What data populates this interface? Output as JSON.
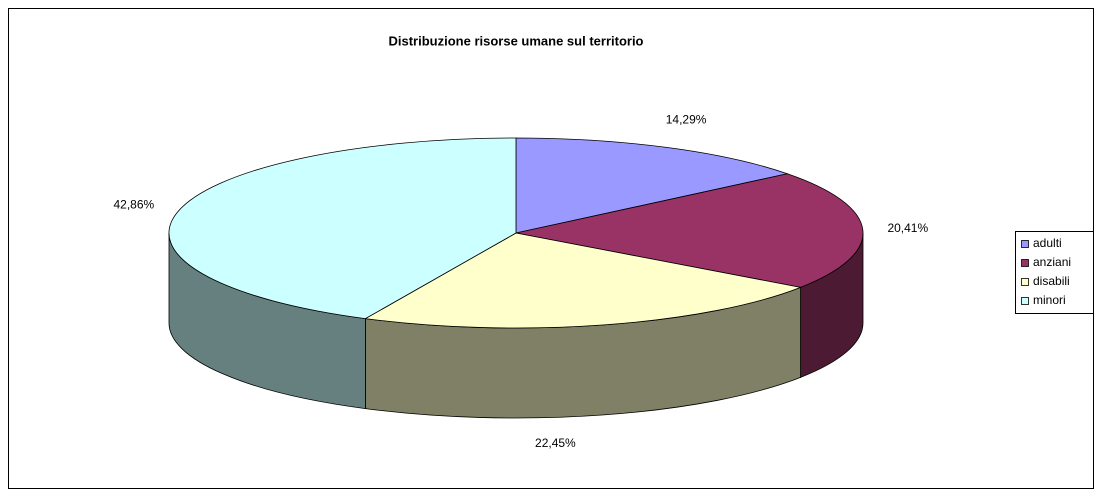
{
  "chart_data": {
    "type": "pie",
    "title": "Distribuzione risorse umane sul territorio",
    "categories": [
      "adulti",
      "anziani",
      "disabili",
      "minori"
    ],
    "values": [
      14.29,
      20.41,
      22.45,
      42.86
    ],
    "value_labels": [
      "14,29%",
      "20,41%",
      "22,45%",
      "42,86%"
    ],
    "colors": [
      "#9999FF",
      "#993366",
      "#FFFFCC",
      "#CCFFFF"
    ],
    "side_colors": [
      "#4d4d80",
      "#4d1a33",
      "#808066",
      "#668080"
    ],
    "legend": "right"
  }
}
